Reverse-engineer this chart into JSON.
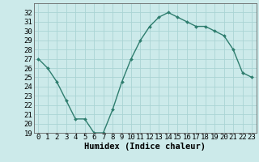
{
  "x": [
    0,
    1,
    2,
    3,
    4,
    5,
    6,
    7,
    8,
    9,
    10,
    11,
    12,
    13,
    14,
    15,
    16,
    17,
    18,
    19,
    20,
    21,
    22,
    23
  ],
  "y": [
    27,
    26,
    24.5,
    22.5,
    20.5,
    20.5,
    19.0,
    19.0,
    21.5,
    24.5,
    27.0,
    29.0,
    30.5,
    31.5,
    32.0,
    31.5,
    31.0,
    30.5,
    30.5,
    30.0,
    29.5,
    28.0,
    25.5,
    25.0
  ],
  "line_color": "#2e7d6e",
  "marker": "D",
  "marker_size": 2.0,
  "bg_color": "#cceaea",
  "grid_color": "#aad4d4",
  "xlabel": "Humidex (Indice chaleur)",
  "ylim": [
    19,
    33
  ],
  "xlim": [
    -0.5,
    23.5
  ],
  "yticks": [
    19,
    20,
    21,
    22,
    23,
    24,
    25,
    26,
    27,
    28,
    29,
    30,
    31,
    32
  ],
  "xticks": [
    0,
    1,
    2,
    3,
    4,
    5,
    6,
    7,
    8,
    9,
    10,
    11,
    12,
    13,
    14,
    15,
    16,
    17,
    18,
    19,
    20,
    21,
    22,
    23
  ],
  "xlabel_fontsize": 7.5,
  "tick_fontsize": 6.5,
  "line_width": 1.0,
  "spine_color": "#666666"
}
